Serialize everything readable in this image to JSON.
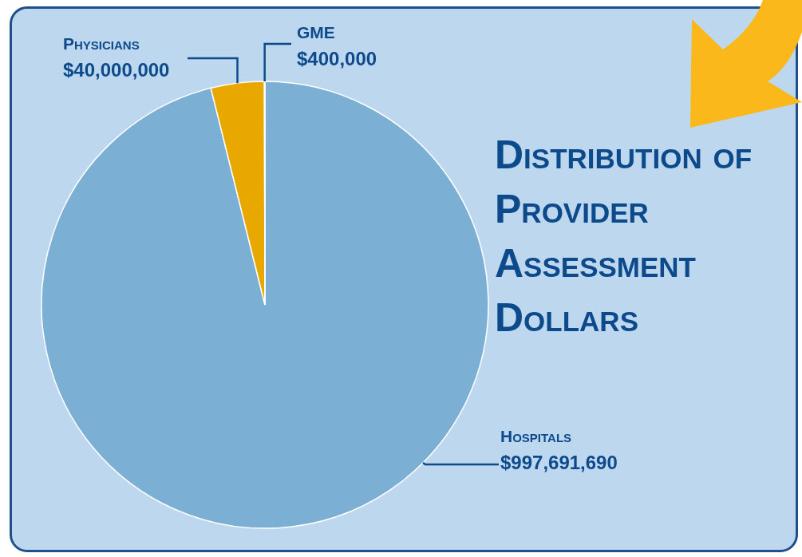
{
  "chart_data": {
    "type": "pie",
    "title": "Distribution of Provider Assessment Dollars",
    "categories": [
      "Hospitals",
      "Physicians",
      "GME"
    ],
    "values": [
      997691690,
      40000000,
      400000
    ],
    "colors": [
      "#7bafd4",
      "#e8a800",
      "#1f4e99"
    ],
    "value_labels": [
      "$997,691,690",
      "$40,000,000",
      "$400,000"
    ]
  }
}
